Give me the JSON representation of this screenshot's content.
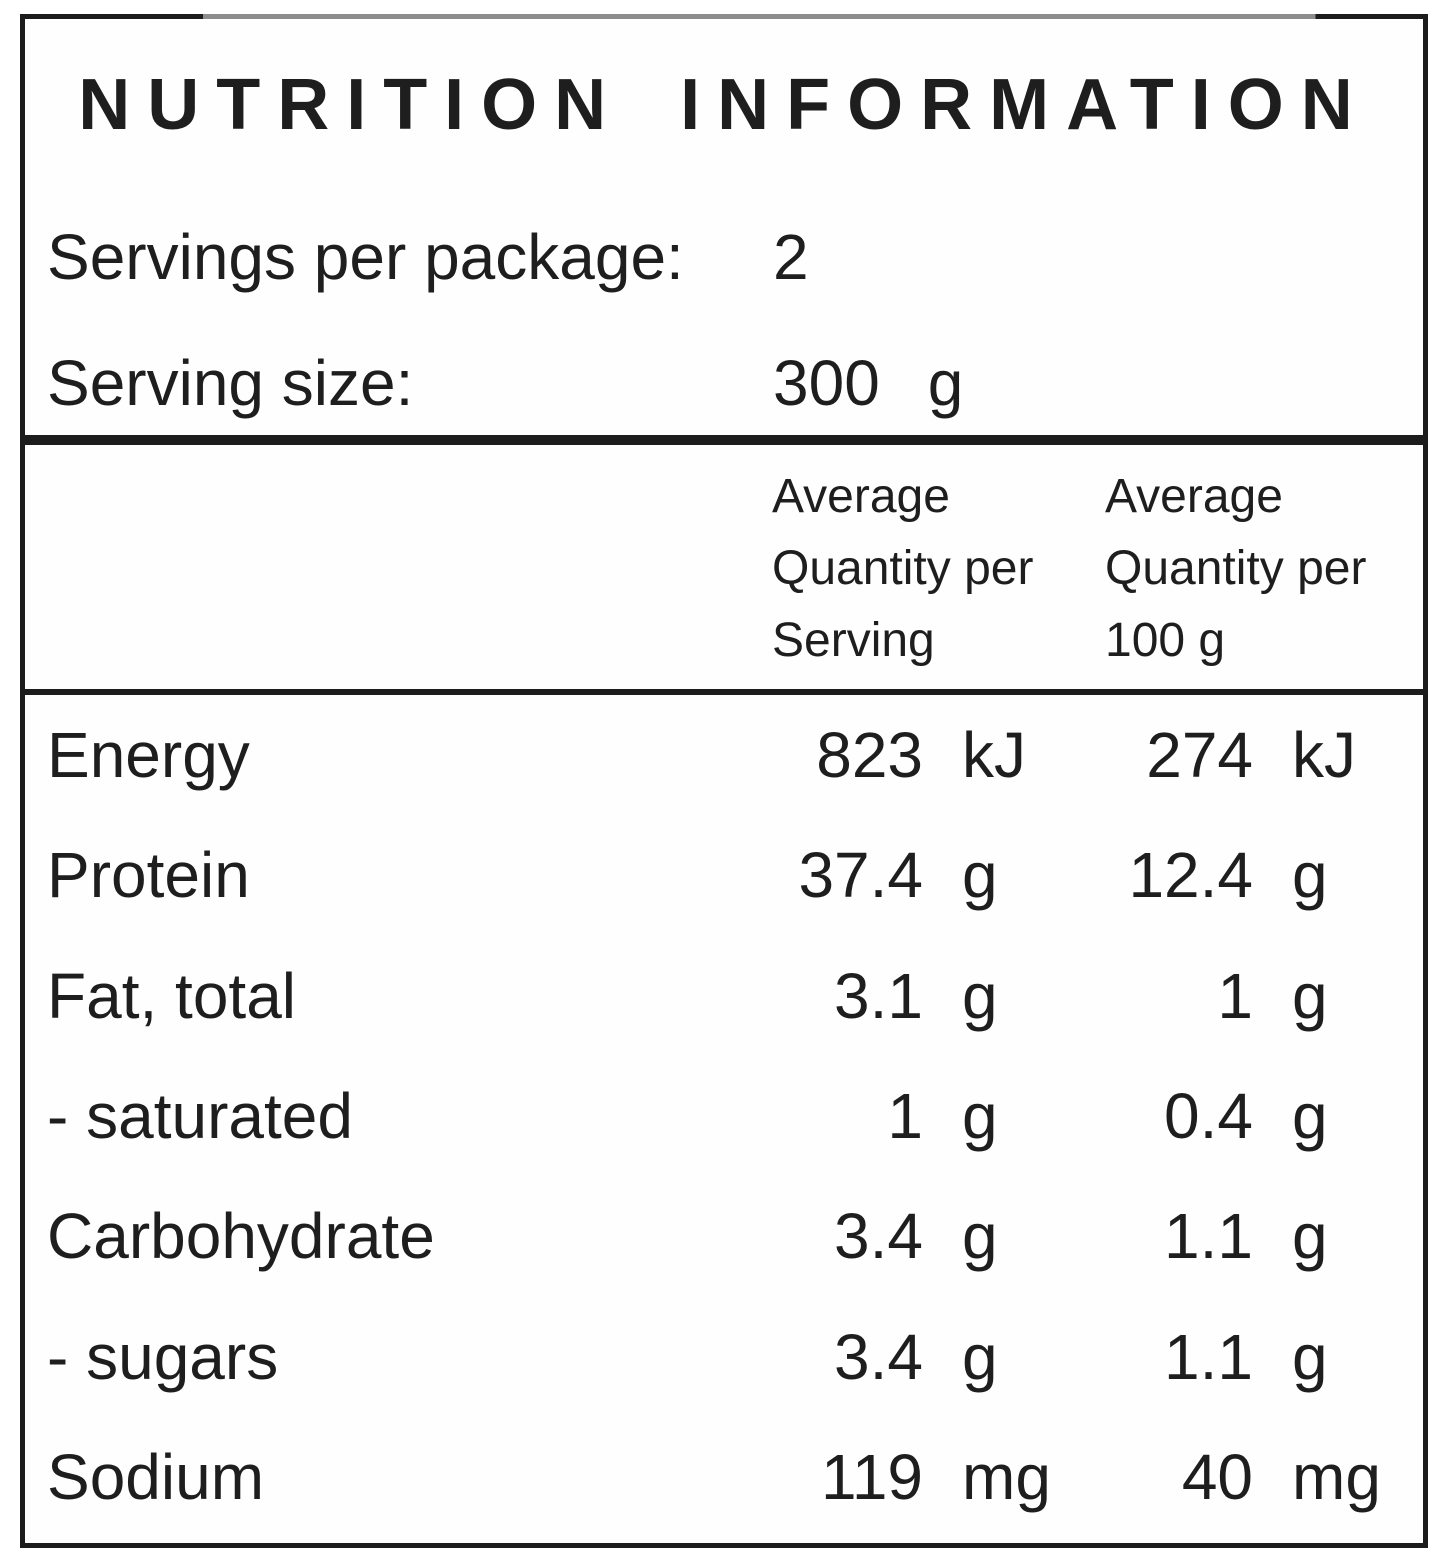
{
  "title": "NUTRITION INFORMATION",
  "package_info": {
    "servings_label": "Servings per package:",
    "servings_value": "2",
    "serving_size_label": "Serving size:",
    "serving_size_value": "300",
    "serving_size_unit": "g"
  },
  "table": {
    "header": {
      "per_serving": "Average Quantity per Serving",
      "per_100g": "Average Quantity per 100 g"
    },
    "rows": [
      {
        "label": "Energy",
        "per_serving": "823",
        "per_serving_unit": "kJ",
        "per_100g": "274",
        "per_100g_unit": "kJ"
      },
      {
        "label": "Protein",
        "per_serving": "37.4",
        "per_serving_unit": "g",
        "per_100g": "12.4",
        "per_100g_unit": "g"
      },
      {
        "label": "Fat, total",
        "per_serving": "3.1",
        "per_serving_unit": "g",
        "per_100g": "1",
        "per_100g_unit": "g"
      },
      {
        "label": "- saturated",
        "per_serving": "1",
        "per_serving_unit": "g",
        "per_100g": "0.4",
        "per_100g_unit": "g"
      },
      {
        "label": "Carbohydrate",
        "per_serving": "3.4",
        "per_serving_unit": "g",
        "per_100g": "1.1",
        "per_100g_unit": "g"
      },
      {
        "label": "- sugars",
        "per_serving": "3.4",
        "per_serving_unit": "g",
        "per_100g": "1.1",
        "per_100g_unit": "g"
      },
      {
        "label": "Sodium",
        "per_serving": "119",
        "per_serving_unit": "mg",
        "per_100g": "40",
        "per_100g_unit": "mg"
      }
    ]
  },
  "colors": {
    "text": "#1e1e1e",
    "border": "#1c1c1c",
    "background": "#ffffff"
  }
}
